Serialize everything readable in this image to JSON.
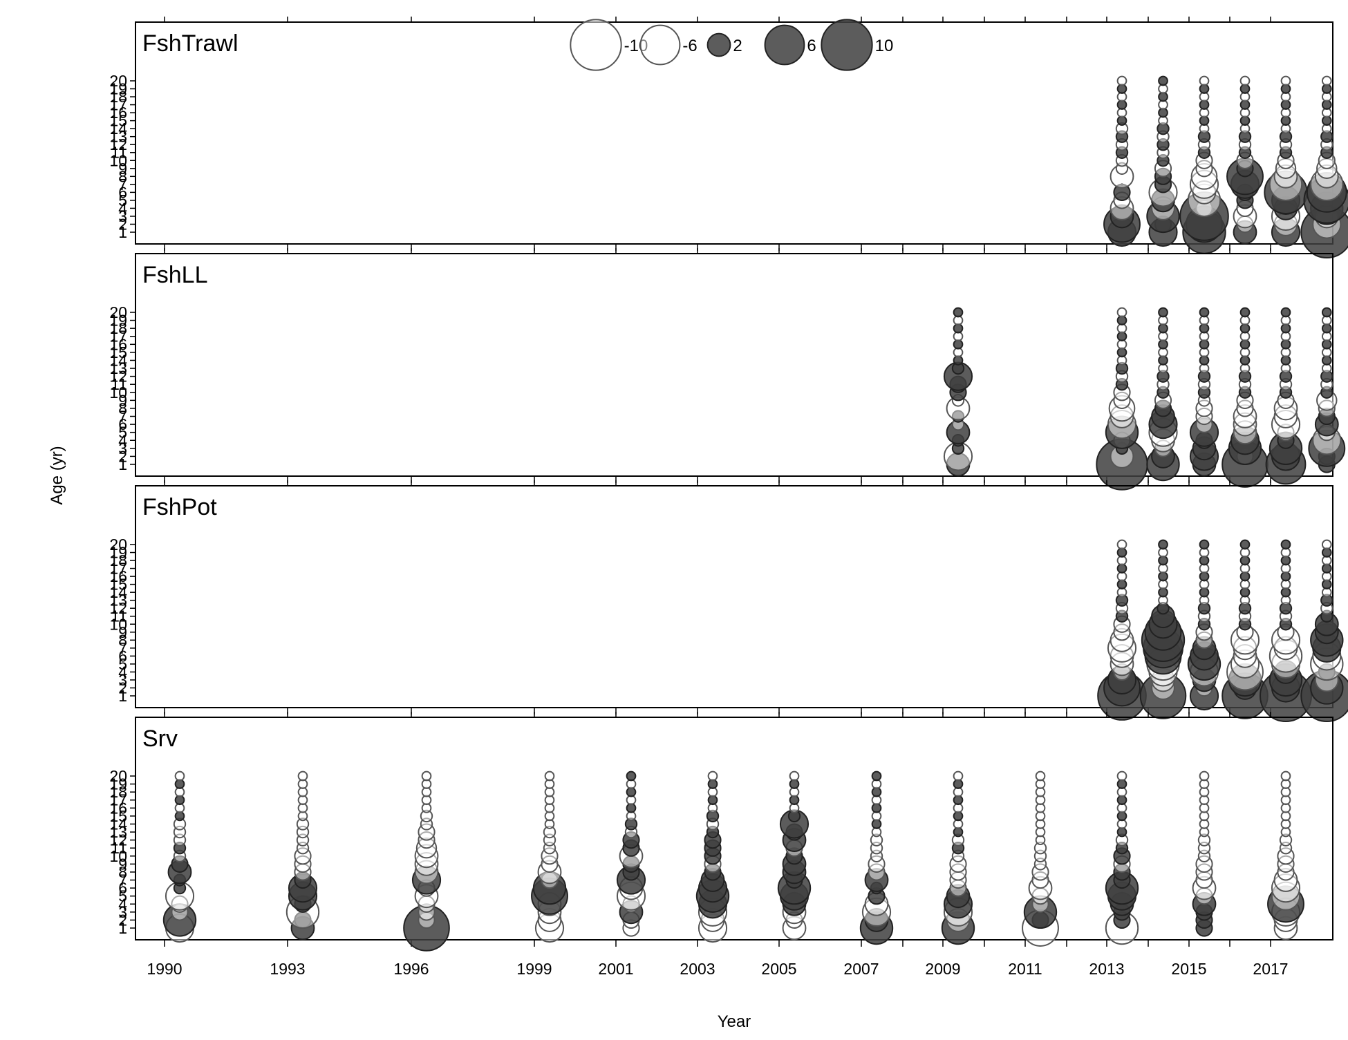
{
  "chart_data": {
    "type": "scatter",
    "subtype": "bubble-residuals",
    "xlabel": "Year",
    "ylabel": "Age (yr)",
    "x_ticks": [
      1990,
      1993,
      1996,
      1999,
      2001,
      2003,
      2005,
      2007,
      2009,
      2011,
      2013,
      2015,
      2017
    ],
    "y_ticks": [
      1,
      2,
      3,
      4,
      5,
      6,
      7,
      8,
      9,
      10,
      11,
      12,
      13,
      14,
      15,
      16,
      17,
      18,
      19,
      20
    ],
    "y_ticks_labels": [
      "1",
      "2",
      "3",
      "4",
      "5",
      "6",
      "7",
      "8",
      "9",
      "10",
      "11",
      "12",
      "13",
      "14",
      "15",
      "16",
      "17",
      "18",
      "19",
      "20"
    ],
    "ylim": [
      1,
      20
    ],
    "legend": {
      "placement": "top-center",
      "entries": [
        {
          "value": -10,
          "label": "-10"
        },
        {
          "value": -6,
          "label": "-6"
        },
        {
          "value": 2,
          "label": "2"
        },
        {
          "value": 6,
          "label": "6"
        },
        {
          "value": 10,
          "label": "10"
        }
      ]
    },
    "colors": {
      "positive": "#3f3f3f",
      "negative_fill": "#ffffff",
      "negative_stroke": "#555555",
      "frame": "#000000"
    },
    "panels": [
      {
        "title": "FshTrawl",
        "years": [
          2013,
          2014,
          2015,
          2016,
          2017,
          2018
        ],
        "residuals": [
          [
            3,
            5,
            2,
            -2,
            -1,
            1,
            0,
            -2,
            -0.5,
            -0.5,
            0.5,
            -0.5,
            0.5,
            -0.5,
            0.3,
            -0.3,
            0.3,
            -0.3,
            0.3,
            -0.3
          ],
          [
            3,
            1,
            4,
            -2,
            2,
            -3,
            1,
            1,
            -1,
            0.5,
            -0.5,
            0.5,
            -0.5,
            0.5,
            -0.3,
            0.3,
            -0.3,
            0.3,
            -0.3,
            0.3
          ],
          [
            7,
            5,
            9,
            -1,
            -4,
            -2,
            -3,
            -2.5,
            -1,
            -1,
            0.5,
            -0.5,
            0.5,
            -0.3,
            0.3,
            -0.3,
            0.3,
            -0.3,
            0.3,
            -0.3
          ],
          [
            2,
            -1,
            -2,
            -1,
            1,
            1,
            3,
            5,
            1,
            -1,
            0.5,
            -0.5,
            0.5,
            -0.3,
            0.3,
            -0.3,
            0.3,
            -0.3,
            0.3,
            -0.3
          ],
          [
            3,
            -2,
            -3,
            2,
            3,
            7,
            -4,
            -2,
            -1.5,
            -1,
            0.5,
            -0.5,
            0.5,
            -0.3,
            0.3,
            -0.3,
            0.3,
            -0.3,
            0.3,
            -0.3
          ],
          [
            12,
            -3,
            -2,
            4,
            8,
            6,
            -4,
            -2,
            -1.5,
            -1,
            0.5,
            -0.5,
            0.5,
            -0.3,
            0.3,
            -0.3,
            0.3,
            -0.3,
            0.3,
            -0.3
          ]
        ]
      },
      {
        "title": "FshLL",
        "years": [
          2009,
          2013,
          2014,
          2015,
          2016,
          2017,
          2018
        ],
        "residuals": [
          [
            2,
            -3,
            0.5,
            0.5,
            2,
            -0.5,
            0.5,
            -2,
            -0.5,
            1,
            1,
            3,
            0.5,
            0.3,
            -0.3,
            0.3,
            -0.3,
            0.3,
            -0.3,
            0.3
          ],
          [
            10,
            -2,
            0.5,
            -1,
            4,
            -3,
            -2,
            -2.5,
            -1,
            -1,
            0.5,
            -0.5,
            0.5,
            -0.3,
            0.3,
            -0.3,
            0.3,
            -0.3,
            0.3,
            -0.3
          ],
          [
            4,
            2,
            -1,
            -2,
            -3,
            3,
            2,
            1,
            -1,
            0.5,
            -0.5,
            0.5,
            -0.3,
            0.3,
            -0.3,
            0.3,
            -0.3,
            0.3,
            -0.3,
            0.3
          ],
          [
            2,
            3,
            2,
            1,
            3,
            -1,
            -1,
            -1,
            -0.5,
            0.5,
            -0.5,
            0.5,
            -0.3,
            0.3,
            -0.3,
            0.3,
            -0.3,
            0.3,
            -0.3,
            0.3
          ],
          [
            8,
            -1,
            4,
            3,
            -2,
            -2,
            -2,
            -1,
            -1,
            0.5,
            -0.5,
            0.5,
            -0.3,
            0.3,
            -0.3,
            0.3,
            -0.3,
            0.3,
            -0.3,
            0.3
          ],
          [
            6,
            3,
            4,
            1,
            -1,
            -3,
            -2,
            -2,
            -1,
            0.5,
            -0.5,
            0.5,
            -0.3,
            0.3,
            -0.3,
            0.3,
            -0.3,
            0.3,
            -0.3,
            0.3
          ],
          [
            1,
            1,
            5,
            -3,
            -1,
            2,
            1,
            -1,
            -1.5,
            0.5,
            -0.5,
            0.5,
            -0.3,
            0.3,
            -0.3,
            0.3,
            -0.3,
            0.3,
            -0.3,
            0.3
          ]
        ]
      },
      {
        "title": "FshPot",
        "years": [
          2013,
          2014,
          2015,
          2016,
          2017,
          2018
        ],
        "residuals": [
          [
            9,
            5,
            3,
            -1,
            -2,
            -2,
            -3,
            -2,
            -1,
            -1,
            0.5,
            -0.5,
            0.5,
            -0.3,
            0.3,
            -0.3,
            0.3,
            -0.3,
            0.3,
            -0.3
          ],
          [
            8,
            -2,
            -2,
            -3,
            -4,
            5,
            6,
            7,
            5,
            3,
            2,
            0.5,
            -0.3,
            0.3,
            -0.3,
            0.3,
            -0.3,
            0.3,
            -0.3,
            0.3
          ],
          [
            3,
            -1,
            2,
            -3,
            4,
            3,
            2,
            -1,
            -1,
            0.5,
            -0.5,
            0.5,
            -0.3,
            0.3,
            -0.3,
            0.3,
            -0.3,
            0.3,
            -0.3,
            0.3
          ],
          [
            8,
            2,
            4,
            -5,
            -3,
            -2,
            -2,
            -3,
            -1,
            0.5,
            -0.5,
            0.5,
            -0.3,
            0.3,
            -0.3,
            0.3,
            -0.3,
            0.3,
            -0.3,
            0.3
          ],
          [
            12,
            3,
            4,
            2,
            -3,
            -4,
            -2,
            -3,
            -1,
            0.5,
            -0.5,
            0.5,
            -0.3,
            0.3,
            -0.3,
            0.3,
            -0.3,
            0.3,
            -0.3,
            0.3
          ],
          [
            13,
            4,
            -2,
            1,
            -4,
            -3,
            3,
            4,
            2,
            2,
            0.5,
            -0.5,
            0.5,
            -0.3,
            0.3,
            -0.3,
            0.3,
            -0.3,
            0.3,
            -0.3
          ]
        ]
      },
      {
        "title": "Srv",
        "years": [
          1990,
          1993,
          1996,
          1999,
          2001,
          2003,
          2005,
          2007,
          2009,
          2011,
          2013,
          2015,
          2017
        ],
        "residuals": [
          [
            -3,
            4,
            -1,
            -1,
            -3,
            0.5,
            0.5,
            2,
            1,
            -0.5,
            0.5,
            -0.5,
            -0.5,
            -0.5,
            0.3,
            -0.3,
            0.3,
            -0.3,
            0.3,
            -0.3
          ],
          [
            2,
            1,
            -4,
            1,
            3,
            3,
            1,
            -1,
            -1,
            -1,
            -0.5,
            -0.5,
            -0.5,
            -0.5,
            -0.3,
            -0.3,
            -0.3,
            -0.3,
            -0.3,
            -0.3
          ],
          [
            8,
            -1,
            -1,
            -1,
            -2,
            -1,
            3,
            -2,
            -2,
            -2,
            -1.5,
            -1,
            -1,
            -0.5,
            -0.5,
            -0.3,
            -0.3,
            -0.3,
            -0.3,
            -0.3
          ],
          [
            -3,
            -2,
            -2,
            -2,
            5,
            4,
            -1,
            -2,
            -1,
            -1,
            -0.5,
            -0.5,
            -0.5,
            -0.3,
            -0.3,
            -0.3,
            -0.3,
            -0.3,
            -0.3,
            -0.3
          ],
          [
            -1,
            -1,
            2,
            -1,
            -3,
            -2,
            3,
            1,
            1,
            -2,
            1,
            1,
            -0.5,
            0.5,
            -0.3,
            0.3,
            -0.3,
            0.3,
            -0.3,
            0.3
          ],
          [
            -3,
            -2,
            -3,
            3,
            4,
            3,
            2,
            1,
            -1,
            1,
            1,
            1,
            0.5,
            -0.5,
            0.5,
            -0.3,
            0.3,
            -0.3,
            0.3,
            -0.3
          ],
          [
            -2,
            -1,
            -2,
            2,
            3,
            4,
            1,
            2,
            2,
            1,
            -1,
            2,
            1,
            3,
            0.5,
            -0.3,
            0.3,
            -0.3,
            0.3,
            -0.3
          ],
          [
            4,
            2,
            -3,
            -2,
            1,
            0.5,
            2,
            -1,
            -1,
            -0.5,
            -0.5,
            -0.5,
            -0.3,
            0.3,
            -0.3,
            0.3,
            -0.3,
            0.3,
            -0.3,
            0.3
          ],
          [
            4,
            -2,
            -3,
            3,
            2,
            -1,
            -1,
            -1,
            -1,
            -0.5,
            0.5,
            -0.5,
            0.3,
            -0.3,
            0.3,
            -0.3,
            0.3,
            -0.3,
            0.3,
            -0.3
          ],
          [
            -5,
            1,
            4,
            -1,
            -1,
            -2,
            -1,
            -1,
            -0.5,
            -0.5,
            -0.5,
            -0.3,
            -0.3,
            -0.3,
            -0.3,
            -0.3,
            -0.3,
            -0.3,
            -0.3,
            -0.3
          ],
          [
            -4,
            1,
            1,
            2,
            3,
            4,
            1,
            1,
            -1,
            1,
            0.5,
            -0.5,
            0.3,
            -0.3,
            0.3,
            -0.3,
            0.3,
            -0.3,
            0.3,
            -0.3
          ],
          [
            1,
            1,
            1,
            2,
            -1,
            -2,
            -1,
            -1,
            -1,
            -0.5,
            -0.5,
            -0.5,
            -0.3,
            -0.3,
            -0.3,
            -0.3,
            -0.3,
            -0.3,
            -0.3,
            -0.3
          ],
          [
            -2,
            -2,
            -3,
            5,
            -3,
            -3,
            -2,
            -1,
            -1,
            -1,
            -0.5,
            -0.5,
            -0.3,
            -0.3,
            -0.3,
            -0.3,
            -0.3,
            -0.3,
            -0.3,
            -0.3
          ]
        ]
      }
    ]
  }
}
